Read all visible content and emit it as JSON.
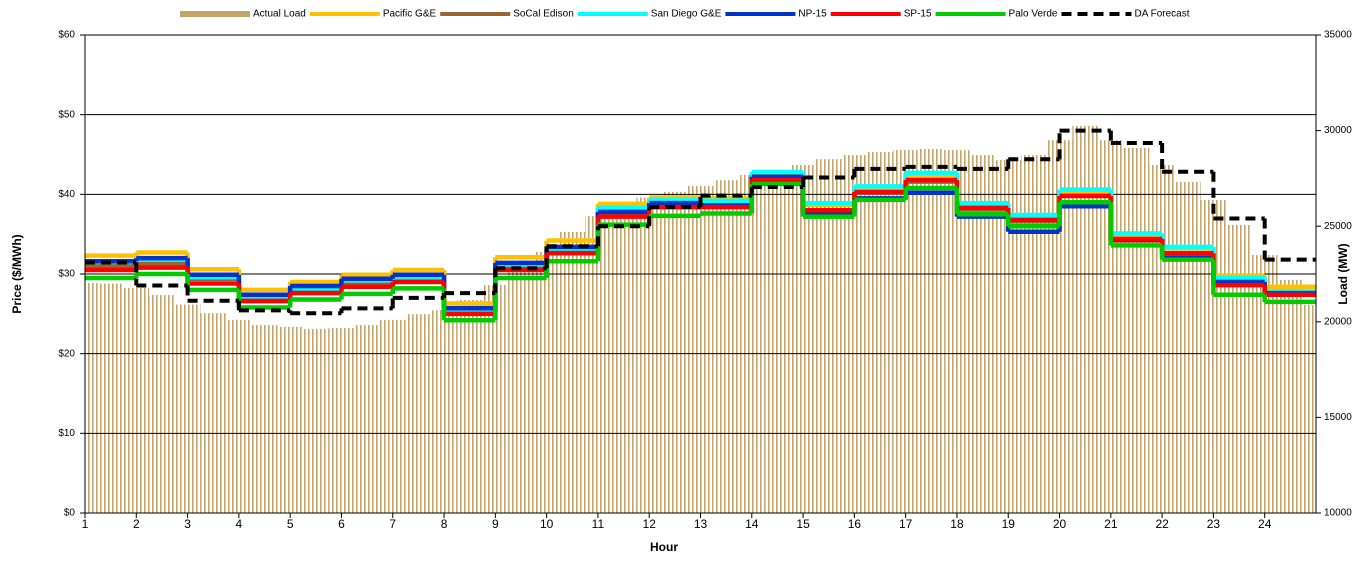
{
  "chart_data": {
    "type": "step-line",
    "xlabel": "Hour",
    "ylabel": "Price ($/MWh)",
    "y2label": "Load (MW)",
    "xlim": [
      1,
      25
    ],
    "xticks": [
      1,
      2,
      3,
      4,
      5,
      6,
      7,
      8,
      9,
      10,
      11,
      12,
      13,
      14,
      15,
      16,
      17,
      18,
      19,
      20,
      21,
      22,
      23,
      24
    ],
    "ylim": [
      0,
      60
    ],
    "yticks": [
      {
        "value": 0,
        "label": "$0"
      },
      {
        "value": 10,
        "label": "$10"
      },
      {
        "value": 20,
        "label": "$20"
      },
      {
        "value": 30,
        "label": "$30"
      },
      {
        "value": 40,
        "label": "$40"
      },
      {
        "value": 50,
        "label": "$50"
      },
      {
        "value": 60,
        "label": "$60"
      }
    ],
    "y2lim": [
      10000,
      35000
    ],
    "y2ticks": [
      10000,
      15000,
      20000,
      25000,
      30000,
      35000
    ],
    "grid": true,
    "legend": "top",
    "x": [
      1,
      2,
      3,
      4,
      5,
      6,
      7,
      8,
      9,
      10,
      11,
      12,
      13,
      14,
      15,
      16,
      17,
      18,
      19,
      20,
      21,
      22,
      23,
      24
    ],
    "series": [
      {
        "name": "Actual Load",
        "color": "#c4a46a",
        "axis": "y2",
        "style": "bar",
        "x": [
          1,
          1.5,
          2,
          2.5,
          3,
          3.5,
          4,
          4.5,
          5,
          5.5,
          6,
          6.5,
          7,
          7.5,
          8,
          8.5,
          9,
          9.5,
          10,
          10.5,
          11,
          11.5,
          12,
          12.5,
          13,
          13.5,
          14,
          14.5,
          15,
          15.5,
          16,
          16.5,
          17,
          17.5,
          18,
          18.5,
          19,
          19.5,
          20,
          20.5,
          21,
          21.5,
          22,
          22.5,
          23,
          23.5,
          24,
          24.5,
          25
        ],
        "values": [
          22030,
          22000,
          21770,
          21400,
          20900,
          20450,
          20100,
          19830,
          19730,
          19620,
          19680,
          19830,
          20100,
          20400,
          20600,
          21140,
          21920,
          22800,
          23650,
          24700,
          25530,
          26100,
          26500,
          26800,
          27100,
          27400,
          27680,
          27940,
          28200,
          28510,
          28720,
          28880,
          28980,
          29040,
          28980,
          28720,
          28460,
          28720,
          29500,
          30250,
          29500,
          29090,
          28200,
          27310,
          26370,
          25060,
          23490,
          22190,
          20880
        ]
      },
      {
        "name": "Pacific G&E",
        "color": "#ffc000",
        "values": [
          32.3,
          32.7,
          30.6,
          28.0,
          29.0,
          29.9,
          30.5,
          26.3,
          32.1,
          34.2,
          38.8,
          39.6,
          39.5,
          42.6,
          38.7,
          40.8,
          42.4,
          38.7,
          37.3,
          40.4,
          34.7,
          33.2,
          29.8,
          28.4
        ]
      },
      {
        "name": "SoCal Edison",
        "color": "#996633",
        "values": [
          31.0,
          31.3,
          29.4,
          27.0,
          28.0,
          28.8,
          29.3,
          25.3,
          31.0,
          33.0,
          37.6,
          38.8,
          38.8,
          41.9,
          38.0,
          40.2,
          41.6,
          38.1,
          36.6,
          39.8,
          34.2,
          32.5,
          28.8,
          27.4
        ]
      },
      {
        "name": "San Diego G&E",
        "color": "#00ffff",
        "values": [
          31.5,
          31.8,
          29.6,
          27.2,
          28.2,
          29.2,
          29.6,
          25.5,
          31.2,
          33.2,
          38.3,
          39.3,
          39.2,
          42.8,
          38.9,
          41.0,
          42.7,
          38.9,
          37.4,
          40.6,
          35.1,
          33.4,
          29.5,
          27.8
        ]
      },
      {
        "name": "NP-15",
        "color": "#0033cc",
        "values": [
          31.6,
          32.0,
          29.9,
          27.4,
          28.5,
          29.4,
          29.9,
          25.7,
          31.4,
          33.4,
          37.8,
          38.9,
          38.6,
          42.2,
          37.6,
          39.5,
          40.2,
          37.2,
          35.3,
          38.5,
          34.3,
          32.0,
          29.0,
          27.6
        ]
      },
      {
        "name": "SP-15",
        "color": "#ff0000",
        "values": [
          30.5,
          30.8,
          28.8,
          26.6,
          27.6,
          28.4,
          29.0,
          25.0,
          30.5,
          32.6,
          37.2,
          38.4,
          38.4,
          41.8,
          38.0,
          40.3,
          41.8,
          38.3,
          36.8,
          39.8,
          34.4,
          32.6,
          28.6,
          27.4
        ]
      },
      {
        "name": "Palo Verde",
        "color": "#00cc00",
        "values": [
          29.5,
          30.0,
          28.0,
          25.8,
          26.8,
          27.5,
          28.2,
          24.2,
          29.5,
          31.6,
          36.2,
          37.3,
          37.6,
          41.3,
          37.2,
          39.3,
          40.8,
          37.5,
          36.0,
          39.0,
          33.6,
          31.8,
          27.4,
          26.5
        ]
      },
      {
        "name": "DA Forecast",
        "color": "#000000",
        "axis": "y2",
        "dash": true,
        "values": [
          23100,
          21900,
          21100,
          20600,
          20450,
          20700,
          21250,
          21500,
          22800,
          23950,
          25000,
          26000,
          26600,
          27050,
          27550,
          28000,
          28100,
          28000,
          28500,
          30000,
          29350,
          27850,
          25400,
          23250
        ]
      }
    ]
  }
}
